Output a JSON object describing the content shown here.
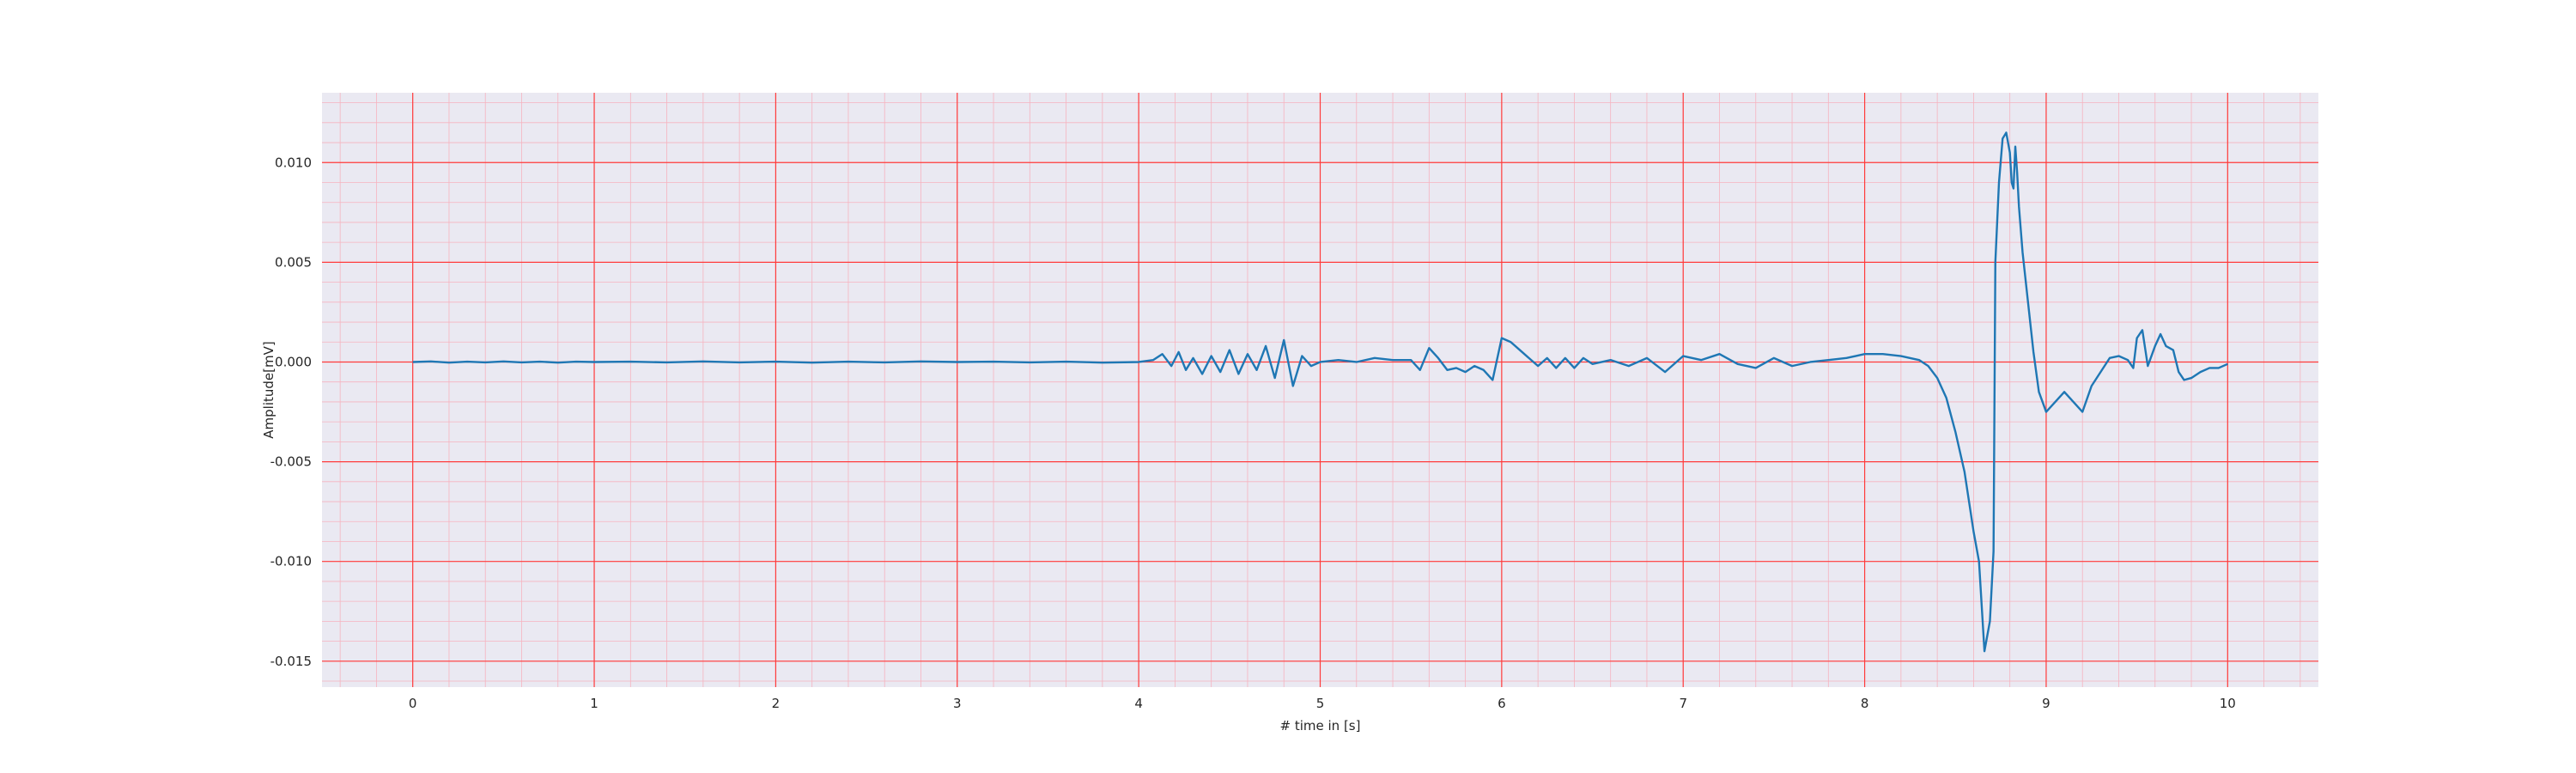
{
  "chart_data": {
    "type": "line",
    "title": "",
    "xlabel": "# time in [s]",
    "ylabel": "Amplitude[mV]",
    "xlim": [
      -0.5,
      10.5
    ],
    "ylim": [
      -0.0163,
      0.0135
    ],
    "grid": true,
    "x_ticks": [
      0,
      1,
      2,
      3,
      4,
      5,
      6,
      7,
      8,
      9,
      10
    ],
    "x_tick_labels": [
      "0",
      "1",
      "2",
      "3",
      "4",
      "5",
      "6",
      "7",
      "8",
      "9",
      "10"
    ],
    "y_ticks": [
      -0.015,
      -0.01,
      -0.005,
      0.0,
      0.005,
      0.01
    ],
    "y_tick_labels": [
      "-0.015",
      "-0.010",
      "-0.005",
      "0.000",
      "0.005",
      "0.010"
    ],
    "colors": {
      "line": "#1f77b4",
      "plot_background": "#eae9f2",
      "major_grid": "#ff3b3b",
      "minor_grid": "#f6b3bf"
    },
    "series": [
      {
        "x": [
          0,
          0.1,
          0.2,
          0.3,
          0.4,
          0.5,
          0.6,
          0.7,
          0.8,
          0.9,
          1.0,
          1.2,
          1.4,
          1.6,
          1.8,
          2.0,
          2.2,
          2.4,
          2.6,
          2.8,
          3.0,
          3.2,
          3.4,
          3.6,
          3.8,
          4.0,
          4.08,
          4.13,
          4.18,
          4.22,
          4.26,
          4.3,
          4.35,
          4.4,
          4.45,
          4.5,
          4.55,
          4.6,
          4.65,
          4.7,
          4.75,
          4.8,
          4.85,
          4.9,
          4.95,
          5.0,
          5.1,
          5.2,
          5.3,
          5.4,
          5.5,
          5.55,
          5.6,
          5.65,
          5.7,
          5.75,
          5.8,
          5.85,
          5.9,
          5.95,
          6.0,
          6.05,
          6.1,
          6.15,
          6.2,
          6.25,
          6.3,
          6.35,
          6.4,
          6.45,
          6.5,
          6.6,
          6.7,
          6.8,
          6.9,
          7.0,
          7.1,
          7.2,
          7.3,
          7.4,
          7.5,
          7.6,
          7.7,
          7.8,
          7.9,
          8.0,
          8.1,
          8.2,
          8.3,
          8.35,
          8.4,
          8.45,
          8.5,
          8.55,
          8.6,
          8.63,
          8.66,
          8.69,
          8.71,
          8.72,
          8.74,
          8.76,
          8.78,
          8.8,
          8.81,
          8.82,
          8.83,
          8.84,
          8.85,
          8.87,
          8.9,
          8.93,
          8.96,
          9.0,
          9.05,
          9.1,
          9.15,
          9.2,
          9.25,
          9.3,
          9.35,
          9.4,
          9.45,
          9.48,
          9.5,
          9.53,
          9.56,
          9.6,
          9.63,
          9.66,
          9.7,
          9.73,
          9.76,
          9.8,
          9.85,
          9.9,
          9.95,
          10.0
        ],
        "y": [
          0.0,
          3e-05,
          -3e-05,
          2e-05,
          -2e-05,
          3e-05,
          -2e-05,
          2e-05,
          -3e-05,
          2e-05,
          0.0,
          2e-05,
          -2e-05,
          3e-05,
          -2e-05,
          2e-05,
          -3e-05,
          2e-05,
          -2e-05,
          3e-05,
          0.0,
          2e-05,
          -2e-05,
          2e-05,
          -3e-05,
          0.0,
          0.0001,
          0.0004,
          -0.0002,
          0.0005,
          -0.0004,
          0.0002,
          -0.0006,
          0.0003,
          -0.0005,
          0.0006,
          -0.0006,
          0.0004,
          -0.0004,
          0.0008,
          -0.0008,
          0.0011,
          -0.0012,
          0.0003,
          -0.0002,
          0.0,
          0.0001,
          0.0,
          0.0002,
          0.0001,
          0.0001,
          -0.0004,
          0.0007,
          0.0002,
          -0.0004,
          -0.0003,
          -0.0005,
          -0.0002,
          -0.0004,
          -0.0009,
          0.0012,
          0.001,
          0.0006,
          0.0002,
          -0.0002,
          0.0002,
          -0.0003,
          0.0002,
          -0.0003,
          0.0002,
          -0.0001,
          0.0001,
          -0.0002,
          0.0002,
          -0.0005,
          0.0003,
          0.0001,
          0.0004,
          -0.0001,
          -0.0003,
          0.0002,
          -0.0002,
          0.0,
          0.0001,
          0.0002,
          0.0004,
          0.0004,
          0.0003,
          0.0001,
          -0.0002,
          -0.0008,
          -0.0018,
          -0.0035,
          -0.0055,
          -0.0085,
          -0.01,
          -0.0145,
          -0.013,
          -0.0095,
          0.005,
          0.009,
          0.0112,
          0.0115,
          0.0105,
          0.009,
          0.0087,
          0.0108,
          0.0095,
          0.0078,
          0.0055,
          0.003,
          0.0005,
          -0.0015,
          -0.0025,
          -0.002,
          -0.0015,
          -0.002,
          -0.0025,
          -0.0012,
          -0.0005,
          0.0002,
          0.0003,
          0.0001,
          -0.0003,
          0.0012,
          0.0016,
          -0.0002,
          0.0008,
          0.0014,
          0.0008,
          0.0006,
          -0.0005,
          -0.0009,
          -0.0008,
          -0.0005,
          -0.0003,
          -0.0003,
          -0.0001
        ]
      }
    ]
  }
}
